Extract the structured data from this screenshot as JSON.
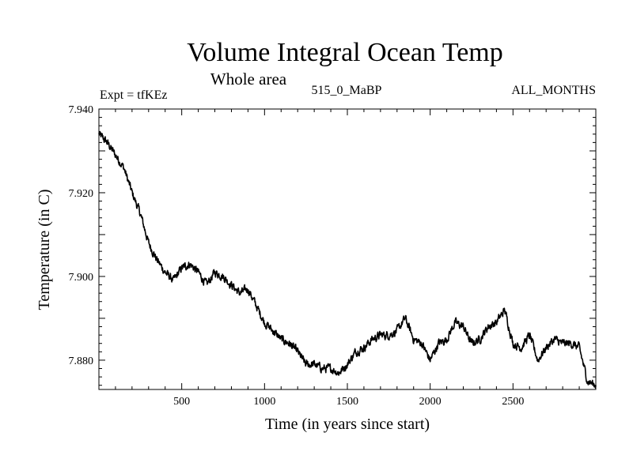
{
  "chart_data": {
    "type": "line",
    "title": "Volume Integral Ocean Temp",
    "subtitle": "Whole area",
    "annotations": {
      "left": "Expt = tfKEz",
      "center": "515_0_MaBP",
      "right": "ALL_MONTHS"
    },
    "xlabel": "Time (in years since start)",
    "ylabel": "Temperature (in C)",
    "xlim": [
      0,
      3000
    ],
    "ylim": [
      7.873,
      7.94
    ],
    "xticks": [
      500,
      1000,
      1500,
      2000,
      2500
    ],
    "xtick_labels": [
      "500",
      "1000",
      "1500",
      "2000",
      "2500"
    ],
    "yticks": [
      7.94,
      7.92,
      7.9,
      7.88
    ],
    "ytick_labels": [
      "7.940",
      "7.920",
      "7.900",
      "7.880"
    ],
    "grid": false,
    "series": [
      {
        "color": "#000000",
        "x": [
          0,
          50,
          100,
          150,
          200,
          250,
          300,
          350,
          400,
          450,
          500,
          550,
          600,
          650,
          700,
          750,
          800,
          850,
          900,
          950,
          1000,
          1050,
          1100,
          1150,
          1200,
          1250,
          1300,
          1350,
          1400,
          1450,
          1500,
          1550,
          1600,
          1650,
          1700,
          1750,
          1800,
          1850,
          1900,
          1950,
          2000,
          2050,
          2100,
          2150,
          2200,
          2250,
          2300,
          2350,
          2400,
          2450,
          2500,
          2550,
          2600,
          2650,
          2700,
          2750,
          2800,
          2850,
          2900,
          2950,
          3000
        ],
        "y": [
          7.934,
          7.932,
          7.929,
          7.926,
          7.92,
          7.915,
          7.908,
          7.904,
          7.901,
          7.899,
          7.902,
          7.903,
          7.901,
          7.898,
          7.901,
          7.9,
          7.898,
          7.896,
          7.897,
          7.893,
          7.889,
          7.887,
          7.885,
          7.884,
          7.882,
          7.879,
          7.879,
          7.878,
          7.878,
          7.877,
          7.879,
          7.882,
          7.883,
          7.885,
          7.886,
          7.886,
          7.887,
          7.89,
          7.885,
          7.884,
          7.88,
          7.884,
          7.885,
          7.889,
          7.888,
          7.884,
          7.885,
          7.888,
          7.889,
          7.892,
          7.884,
          7.883,
          7.886,
          7.88,
          7.883,
          7.885,
          7.884,
          7.884,
          7.883,
          7.875,
          7.874
        ]
      }
    ]
  }
}
